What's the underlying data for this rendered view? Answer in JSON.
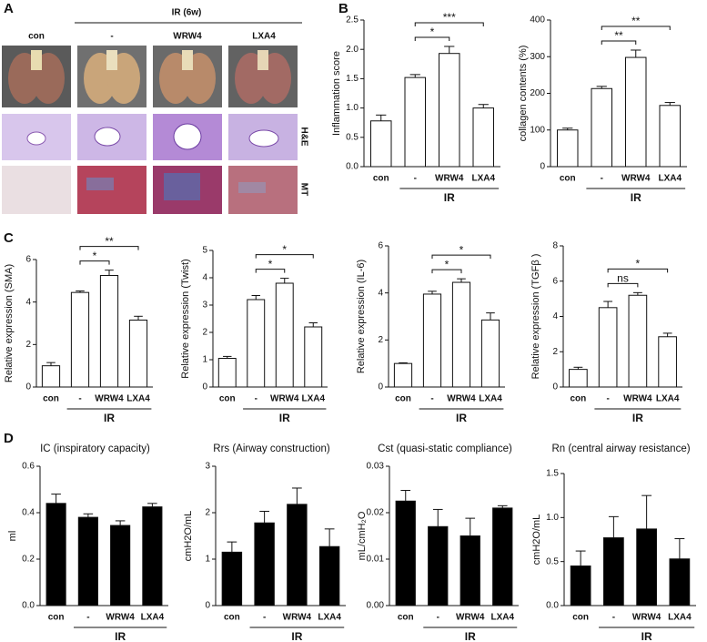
{
  "panel_letters": [
    "A",
    "B",
    "C",
    "D"
  ],
  "panel_a": {
    "group": "IR (6w)",
    "columns": [
      "con",
      "-",
      "WRW4",
      "LXA4"
    ],
    "rows": [
      "H&E",
      "MT"
    ]
  },
  "chart_data": [
    {
      "type": "bar",
      "ylabel": "Inflammation score",
      "categories": [
        "con",
        "-",
        "WRW4",
        "LXA4"
      ],
      "group_label": "IR",
      "color": "#ffffff",
      "values": [
        0.78,
        1.52,
        1.93,
        1.0
      ],
      "errors": [
        0.1,
        0.05,
        0.12,
        0.06
      ],
      "ylim": [
        0,
        2.5
      ],
      "yticks": [
        {
          "value": 0,
          "label": "0.0"
        },
        0.5,
        {
          "value": 1,
          "label": "1.0"
        },
        1.5,
        {
          "value": 2,
          "label": "2.0"
        },
        2.5
      ],
      "significance": [
        {
          "pair": [
            "-",
            "WRW4"
          ],
          "label": "*"
        },
        {
          "pair": [
            "-",
            "LXA4"
          ],
          "label": "***"
        }
      ]
    },
    {
      "type": "bar",
      "ylabel": "collagen contents (%)",
      "categories": [
        "con",
        "-",
        "WRW4",
        "LXA4"
      ],
      "group_label": "IR",
      "color": "#ffffff",
      "values": [
        100,
        213,
        298,
        167
      ],
      "errors": [
        5,
        6,
        20,
        8
      ],
      "ylim": [
        0,
        400
      ],
      "yticks": [
        0,
        100,
        200,
        300,
        400
      ],
      "significance": [
        {
          "pair": [
            "-",
            "WRW4"
          ],
          "label": "**"
        },
        {
          "pair": [
            "-",
            "LXA4"
          ],
          "label": "**"
        }
      ]
    },
    {
      "type": "bar",
      "ylabel": "Relative expression (SMA)",
      "categories": [
        "con",
        "-",
        "WRW4",
        "LXA4"
      ],
      "group_label": "IR",
      "color": "#ffffff",
      "values": [
        1.0,
        4.45,
        5.25,
        3.15
      ],
      "errors": [
        0.15,
        0.07,
        0.25,
        0.18
      ],
      "ylim": [
        0,
        6
      ],
      "yticks": [
        0,
        2,
        4,
        6
      ],
      "significance": [
        {
          "pair": [
            "-",
            "WRW4"
          ],
          "label": "*"
        },
        {
          "pair": [
            "-",
            "LXA4"
          ],
          "label": "**"
        }
      ]
    },
    {
      "type": "bar",
      "ylabel": "Relative expression (Twist)",
      "categories": [
        "con",
        "-",
        "WRW4",
        "LXA4"
      ],
      "group_label": "IR",
      "color": "#ffffff",
      "values": [
        1.05,
        3.2,
        3.8,
        2.2
      ],
      "errors": [
        0.07,
        0.15,
        0.18,
        0.15
      ],
      "ylim": [
        0,
        5
      ],
      "yticks": [
        0,
        1,
        2,
        3,
        4,
        5
      ],
      "significance": [
        {
          "pair": [
            "-",
            "WRW4"
          ],
          "label": "*"
        },
        {
          "pair": [
            "-",
            "LXA4"
          ],
          "label": "*"
        }
      ]
    },
    {
      "type": "bar",
      "ylabel": "Relative expression (IL-6)",
      "categories": [
        "con",
        "-",
        "WRW4",
        "LXA4"
      ],
      "group_label": "IR",
      "color": "#ffffff",
      "values": [
        1.0,
        3.95,
        4.45,
        2.85
      ],
      "errors": [
        0.03,
        0.12,
        0.15,
        0.3
      ],
      "ylim": [
        0,
        6
      ],
      "yticks": [
        0,
        2,
        4,
        6
      ],
      "significance": [
        {
          "pair": [
            "-",
            "WRW4"
          ],
          "label": "*"
        },
        {
          "pair": [
            "-",
            "LXA4"
          ],
          "label": "*"
        }
      ]
    },
    {
      "type": "bar",
      "ylabel": "Relative expression (TGFβ )",
      "categories": [
        "con",
        "-",
        "WRW4",
        "LXA4"
      ],
      "group_label": "IR",
      "color": "#ffffff",
      "values": [
        1.0,
        4.5,
        5.2,
        2.85
      ],
      "errors": [
        0.12,
        0.35,
        0.15,
        0.2
      ],
      "ylim": [
        0,
        8
      ],
      "yticks": [
        0,
        2,
        4,
        6,
        8
      ],
      "significance": [
        {
          "pair": [
            "-",
            "WRW4"
          ],
          "label": "ns"
        },
        {
          "pair": [
            "-",
            "LXA4"
          ],
          "label": "*"
        }
      ]
    },
    {
      "type": "bar",
      "title": "IC (inspiratory capacity)",
      "ylabel": "ml",
      "categories": [
        "con",
        "-",
        "WRW4",
        "LXA4"
      ],
      "group_label": "IR",
      "color": "#000000",
      "values": [
        0.44,
        0.38,
        0.345,
        0.425
      ],
      "errors": [
        0.04,
        0.015,
        0.02,
        0.015
      ],
      "ylim": [
        0,
        0.6
      ],
      "yticks": [
        {
          "value": 0,
          "label": "0.0"
        },
        0.2,
        0.4,
        0.6
      ]
    },
    {
      "type": "bar",
      "title": "Rrs (Airway construction)",
      "ylabel": "cmH2O/mL",
      "categories": [
        "con",
        "-",
        "WRW4",
        "LXA4"
      ],
      "group_label": "IR",
      "color": "#000000",
      "values": [
        1.15,
        1.78,
        2.18,
        1.27
      ],
      "errors": [
        0.22,
        0.25,
        0.35,
        0.38
      ],
      "ylim": [
        0,
        3
      ],
      "yticks": [
        0,
        1,
        2,
        3
      ]
    },
    {
      "type": "bar",
      "title": "Cst (quasi-static compliance)",
      "ylabel": "mL/cmH₂O",
      "categories": [
        "con",
        "-",
        "WRW4",
        "LXA4"
      ],
      "group_label": "IR",
      "color": "#000000",
      "values": [
        0.0225,
        0.017,
        0.015,
        0.021
      ],
      "errors": [
        0.0023,
        0.0037,
        0.0038,
        0.0005
      ],
      "ylim": [
        0,
        0.03
      ],
      "yticks": [
        {
          "value": 0,
          "label": "0.00"
        },
        0.01,
        0.02,
        0.03
      ]
    },
    {
      "type": "bar",
      "title": "Rn  (central airway resistance)",
      "ylabel": "cmH2O/mL",
      "categories": [
        "con",
        "-",
        "WRW4",
        "LXA4"
      ],
      "group_label": "IR",
      "color": "#000000",
      "values": [
        0.45,
        0.77,
        0.87,
        0.53
      ],
      "errors": [
        0.17,
        0.24,
        0.38,
        0.23
      ],
      "ylim": [
        0,
        1.5
      ],
      "yticks": [
        {
          "value": 0,
          "label": "0.0"
        },
        0.5,
        {
          "value": 1,
          "label": "1.0"
        },
        1.5
      ]
    }
  ]
}
